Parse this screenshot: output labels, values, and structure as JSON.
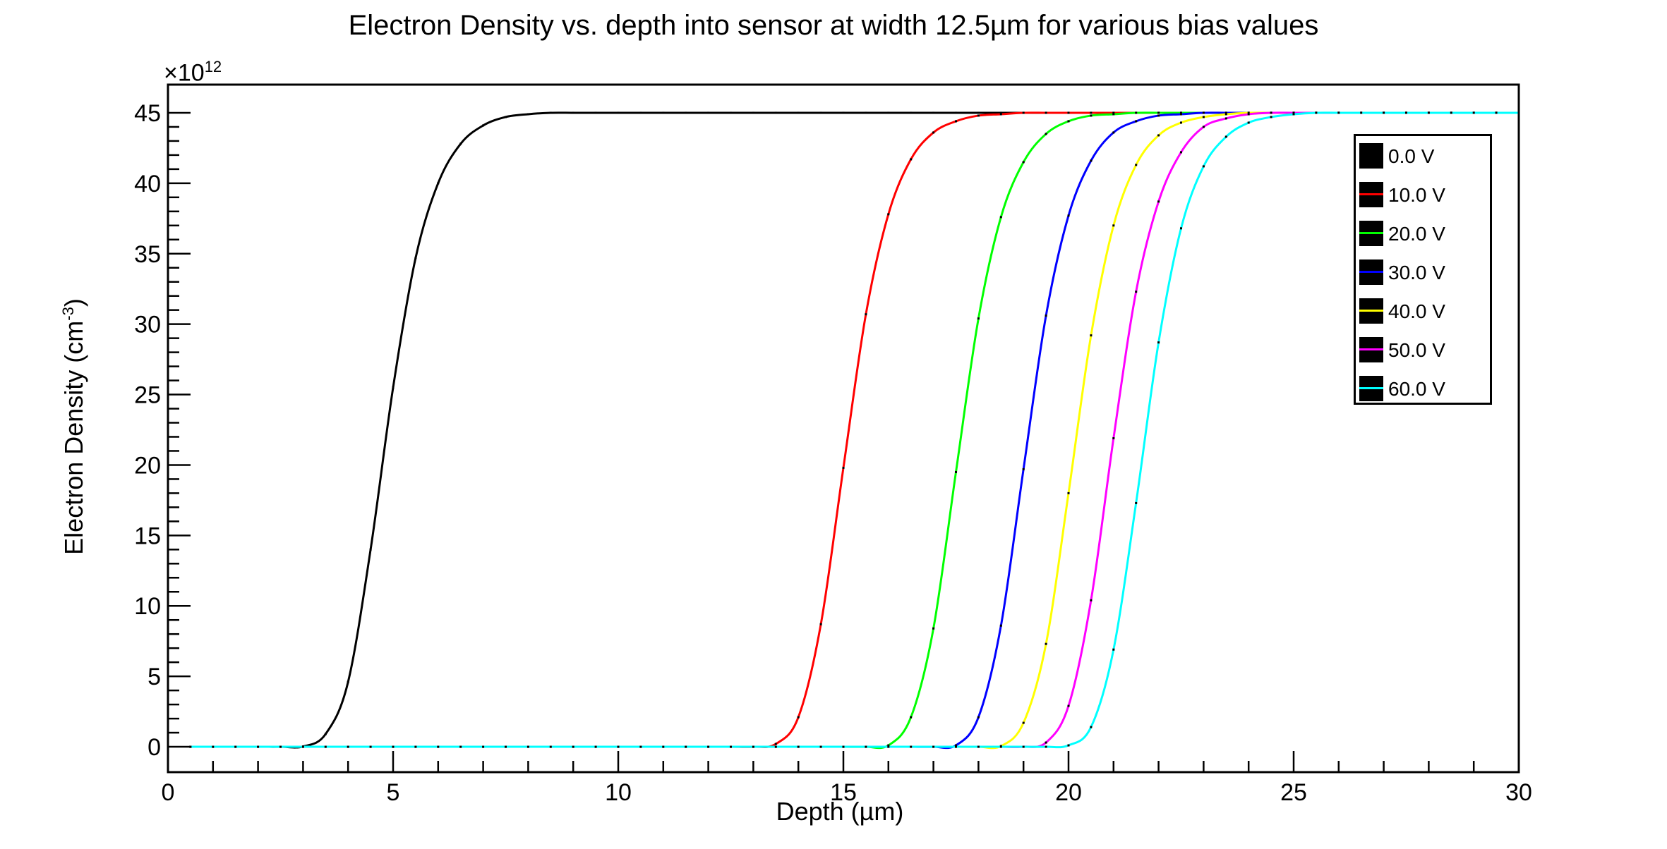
{
  "title": "Electron Density vs. depth into sensor at width 12.5µm for various bias values",
  "chart_data": {
    "type": "line",
    "title": "Electron Density vs. depth into sensor at width 12.5µm for various bias values",
    "xlabel": "Depth (µm)",
    "ylabel_main": "Electron Density (cm",
    "ylabel_sup": "-3",
    "ylabel_close": ")",
    "y_multiplier_base": "×10",
    "y_multiplier_exp": "12",
    "xlim": [
      0,
      30
    ],
    "ylim": [
      -1.8,
      47
    ],
    "x_ticks": [
      0,
      5,
      10,
      15,
      20,
      25,
      30
    ],
    "y_ticks": [
      0,
      5,
      10,
      15,
      20,
      25,
      30,
      35,
      40,
      45
    ],
    "grid": false,
    "legend_position": "top-right",
    "sampled_x": [
      0.5,
      1.0,
      1.5,
      2.0,
      2.5,
      3.0,
      3.5,
      4.0,
      4.5,
      5.0,
      5.5,
      6.0,
      6.5,
      7.0,
      7.5,
      8.0,
      8.5,
      9.0,
      9.5,
      10.0,
      10.5,
      11.0,
      11.5,
      12.0,
      12.5,
      13.0,
      13.5,
      14.0,
      14.5,
      15.0,
      15.5,
      16.0,
      16.5,
      17.0,
      17.5,
      18.0,
      18.5,
      19.0,
      19.5,
      20.0,
      20.5,
      21.0,
      21.5,
      22.0,
      22.5,
      23.0,
      23.5,
      24.0,
      24.5,
      25.0,
      25.5,
      26.0,
      26.5,
      27.0,
      27.5,
      28.0,
      28.5,
      29.0,
      29.5,
      30.0
    ],
    "series": [
      {
        "name": "0.0 V",
        "color": "#000000",
        "values": [
          0,
          0,
          0,
          0,
          0,
          0.02,
          0.9,
          4.6,
          14.0,
          25.5,
          34.7,
          40.0,
          42.8,
          44.1,
          44.7,
          44.9,
          45.0,
          45.0,
          45.0,
          45.0,
          45.0,
          45.0,
          45.0,
          45.0,
          45.0,
          45.0,
          45.0,
          45.0,
          45.0,
          45.0,
          45.0,
          45.0,
          45.0,
          45.0,
          45.0,
          45.0,
          45.0,
          45.0,
          45.0,
          45.0,
          45.0,
          45.0,
          45.0,
          45.0,
          45.0,
          45.0,
          45.0,
          45.0,
          45.0,
          45.0,
          45.0,
          45.0,
          45.0,
          45.0,
          45.0,
          45.0,
          45.0,
          45.0,
          45.0,
          45.0
        ]
      },
      {
        "name": "10.0 V",
        "color": "#ff0000",
        "values": [
          0,
          0,
          0,
          0,
          0,
          0,
          0,
          0,
          0,
          0,
          0,
          0,
          0,
          0,
          0,
          0,
          0,
          0,
          0,
          0,
          0,
          0,
          0,
          0,
          0,
          0,
          0.2,
          2.1,
          8.7,
          19.8,
          30.7,
          37.8,
          41.7,
          43.6,
          44.4,
          44.8,
          44.9,
          45.0,
          45.0,
          45.0,
          45.0,
          45.0,
          45.0,
          45.0,
          45.0,
          45.0,
          45.0,
          45.0,
          45.0,
          45.0,
          45.0,
          45.0,
          45.0,
          45.0,
          45.0,
          45.0,
          45.0,
          45.0,
          45.0,
          45.0
        ]
      },
      {
        "name": "20.0 V",
        "color": "#00ff00",
        "values": [
          0,
          0,
          0,
          0,
          0,
          0,
          0,
          0,
          0,
          0,
          0,
          0,
          0,
          0,
          0,
          0,
          0,
          0,
          0,
          0,
          0,
          0,
          0,
          0,
          0,
          0,
          0,
          0,
          0,
          0,
          0,
          0.1,
          2.1,
          8.4,
          19.5,
          30.4,
          37.6,
          41.5,
          43.5,
          44.4,
          44.8,
          44.9,
          45.0,
          45.0,
          45.0,
          45.0,
          45.0,
          45.0,
          45.0,
          45.0,
          45.0,
          45.0,
          45.0,
          45.0,
          45.0,
          45.0,
          45.0,
          45.0,
          45.0,
          45.0
        ]
      },
      {
        "name": "30.0 V",
        "color": "#0000ff",
        "values": [
          0,
          0,
          0,
          0,
          0,
          0,
          0,
          0,
          0,
          0,
          0,
          0,
          0,
          0,
          0,
          0,
          0,
          0,
          0,
          0,
          0,
          0,
          0,
          0,
          0,
          0,
          0,
          0,
          0,
          0,
          0,
          0,
          0,
          0,
          0.1,
          2.1,
          8.6,
          19.7,
          30.6,
          37.7,
          41.6,
          43.6,
          44.4,
          44.8,
          44.9,
          45.0,
          45.0,
          45.0,
          45.0,
          45.0,
          45.0,
          45.0,
          45.0,
          45.0,
          45.0,
          45.0,
          45.0,
          45.0,
          45.0,
          45.0
        ]
      },
      {
        "name": "40.0 V",
        "color": "#ffff00",
        "values": [
          0,
          0,
          0,
          0,
          0,
          0,
          0,
          0,
          0,
          0,
          0,
          0,
          0,
          0,
          0,
          0,
          0,
          0,
          0,
          0,
          0,
          0,
          0,
          0,
          0,
          0,
          0,
          0,
          0,
          0,
          0,
          0,
          0,
          0,
          0,
          0,
          0.05,
          1.7,
          7.3,
          18.0,
          29.2,
          37.0,
          41.3,
          43.4,
          44.3,
          44.7,
          44.9,
          45.0,
          45.0,
          45.0,
          45.0,
          45.0,
          45.0,
          45.0,
          45.0,
          45.0,
          45.0,
          45.0,
          45.0,
          45.0
        ]
      },
      {
        "name": "50.0 V",
        "color": "#ff00ff",
        "values": [
          0,
          0,
          0,
          0,
          0,
          0,
          0,
          0,
          0,
          0,
          0,
          0,
          0,
          0,
          0,
          0,
          0,
          0,
          0,
          0,
          0,
          0,
          0,
          0,
          0,
          0,
          0,
          0,
          0,
          0,
          0,
          0,
          0,
          0,
          0,
          0,
          0,
          0,
          0.3,
          2.9,
          10.4,
          21.9,
          32.3,
          38.7,
          42.2,
          44.0,
          44.6,
          44.9,
          45.0,
          45.0,
          45.0,
          45.0,
          45.0,
          45.0,
          45.0,
          45.0,
          45.0,
          45.0,
          45.0,
          45.0
        ]
      },
      {
        "name": "60.0 V",
        "color": "#00ffff",
        "values": [
          0,
          0,
          0,
          0,
          0,
          0,
          0,
          0,
          0,
          0,
          0,
          0,
          0,
          0,
          0,
          0,
          0,
          0,
          0,
          0,
          0,
          0,
          0,
          0,
          0,
          0,
          0,
          0,
          0,
          0,
          0,
          0,
          0,
          0,
          0,
          0,
          0,
          0,
          0,
          0.1,
          1.4,
          6.9,
          17.3,
          28.7,
          36.8,
          41.2,
          43.3,
          44.3,
          44.7,
          44.9,
          45.0,
          45.0,
          45.0,
          45.0,
          45.0,
          45.0,
          45.0,
          45.0,
          45.0,
          45.0
        ]
      }
    ]
  }
}
